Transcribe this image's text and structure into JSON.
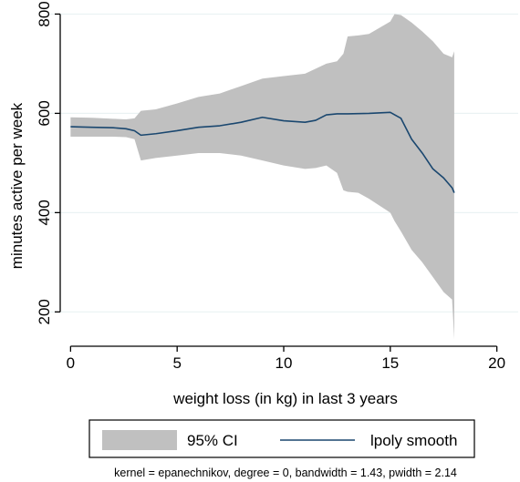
{
  "chart_data": {
    "type": "area",
    "xlabel": "weight loss (in kg) in last 3 years",
    "ylabel": "minutes active per week",
    "xlim": [
      -1,
      21
    ],
    "ylim": [
      140,
      810
    ],
    "xticks": [
      0,
      5,
      10,
      15,
      20
    ],
    "yticks": [
      200,
      400,
      600,
      800
    ],
    "grid": "horizontal",
    "legend_position": "bottom",
    "note": "kernel = epanechnikov, degree = 0, bandwidth = 1.43, pwidth = 2.14",
    "colors": {
      "ci_fill": "#c0c0c0",
      "smooth_line": "#1a476f",
      "grid": "#eaf2f3"
    },
    "series": [
      {
        "name": "95% CI",
        "kind": "band",
        "x": [
          0,
          1,
          2,
          2.6,
          3,
          3.3,
          4,
          5,
          6,
          7,
          8,
          9,
          10,
          11,
          11.5,
          12,
          12.5,
          12.8,
          13,
          13.5,
          14,
          15,
          15.2,
          15.5,
          16,
          16.5,
          17,
          17.5,
          17.9,
          18
        ],
        "upper": [
          592,
          591,
          589,
          588,
          590,
          605,
          608,
          620,
          633,
          640,
          655,
          670,
          675,
          680,
          690,
          700,
          705,
          720,
          755,
          757,
          760,
          785,
          800,
          798,
          783,
          765,
          745,
          720,
          713,
          725
        ],
        "lower": [
          553,
          553,
          553,
          552,
          548,
          505,
          510,
          515,
          520,
          520,
          515,
          505,
          495,
          488,
          490,
          495,
          480,
          445,
          442,
          440,
          428,
          400,
          383,
          362,
          325,
          300,
          270,
          240,
          225,
          145
        ]
      },
      {
        "name": "lpoly smooth",
        "kind": "line",
        "x": [
          0,
          1,
          2,
          2.6,
          3,
          3.3,
          4,
          5,
          6,
          7,
          8,
          9,
          10,
          11,
          11.5,
          12,
          12.5,
          13,
          14,
          15,
          15.5,
          16,
          16.5,
          17,
          17.5,
          17.9,
          18
        ],
        "y": [
          573,
          572,
          571,
          569,
          565,
          556,
          559,
          565,
          572,
          575,
          582,
          592,
          585,
          582,
          586,
          597,
          599,
          599,
          600,
          602,
          590,
          548,
          520,
          488,
          470,
          450,
          440
        ]
      }
    ]
  }
}
